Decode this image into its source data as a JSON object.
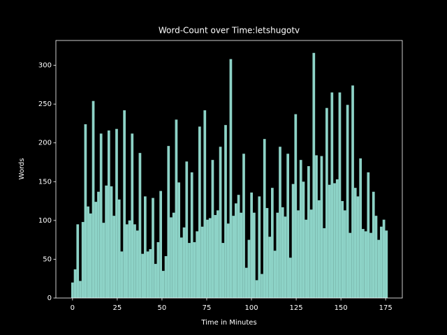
{
  "chart_data": {
    "type": "bar",
    "title": "Word-Count over Time:letshugotv",
    "x_label": "Time in Minutes",
    "y_label": "Words",
    "x": [
      0,
      1.45,
      2.9,
      4.35,
      5.8,
      7.25,
      8.7,
      10.15,
      11.6,
      13.05,
      14.5,
      15.95,
      17.4,
      18.85,
      20.3,
      21.75,
      23.2,
      24.65,
      26.1,
      27.55,
      29,
      30.45,
      31.9,
      33.35,
      34.8,
      36.25,
      37.7,
      39.15,
      40.6,
      42.05,
      43.5,
      44.95,
      46.4,
      47.85,
      49.3,
      50.75,
      52.2,
      53.65,
      55.1,
      56.55,
      58,
      59.45,
      60.9,
      62.35,
      63.8,
      65.25,
      66.7,
      68.15,
      69.6,
      71.05,
      72.5,
      73.95,
      75.4,
      76.85,
      78.3,
      79.75,
      81.2,
      82.65,
      84.1,
      85.55,
      87,
      88.45,
      89.9,
      91.35,
      92.8,
      94.25,
      95.7,
      97.15,
      98.6,
      100.05,
      101.5,
      102.95,
      104.4,
      105.85,
      107.3,
      108.75,
      110.2,
      111.65,
      113.1,
      114.55,
      116,
      117.45,
      118.9,
      120.35,
      121.8,
      123.25,
      124.7,
      126.15,
      127.6,
      129.05,
      130.5,
      131.95,
      133.4,
      134.85,
      136.3,
      137.75,
      139.2,
      140.65,
      142.1,
      143.55,
      145,
      146.45,
      147.9,
      149.35,
      150.8,
      152.25,
      153.7,
      155.15,
      156.6,
      158.05,
      159.5,
      160.95,
      162.4,
      163.85,
      165.3,
      166.75,
      168.2,
      169.65,
      171.1,
      172.55,
      174,
      175.45
    ],
    "values": [
      20,
      37,
      95,
      22,
      98,
      224,
      118,
      109,
      254,
      124,
      137,
      212,
      97,
      145,
      216,
      144,
      106,
      218,
      127,
      60,
      242,
      95,
      100,
      212,
      95,
      87,
      187,
      57,
      131,
      60,
      63,
      129,
      44,
      72,
      138,
      35,
      54,
      196,
      104,
      110,
      230,
      149,
      78,
      91,
      176,
      71,
      162,
      72,
      86,
      221,
      92,
      242,
      101,
      103,
      178,
      107,
      113,
      195,
      71,
      223,
      96,
      308,
      106,
      122,
      133,
      110,
      186,
      39,
      75,
      136,
      110,
      23,
      131,
      31,
      205,
      116,
      79,
      142,
      61,
      110,
      195,
      117,
      105,
      186,
      52,
      147,
      237,
      113,
      178,
      150,
      101,
      170,
      114,
      316,
      184,
      126,
      183,
      90,
      245,
      146,
      265,
      148,
      153,
      265,
      125,
      113,
      249,
      84,
      274,
      142,
      131,
      180,
      89,
      86,
      162,
      84,
      137,
      106,
      75,
      92,
      101,
      87
    ],
    "bar_width": 1.45,
    "color": "#8dd3c7",
    "xlim": [
      -9.3,
      184.3
    ],
    "xticks": [
      0,
      25,
      50,
      75,
      100,
      125,
      150,
      175
    ],
    "ylim": [
      0,
      332
    ],
    "yticks": [
      0,
      50,
      100,
      150,
      200,
      250,
      300
    ]
  }
}
